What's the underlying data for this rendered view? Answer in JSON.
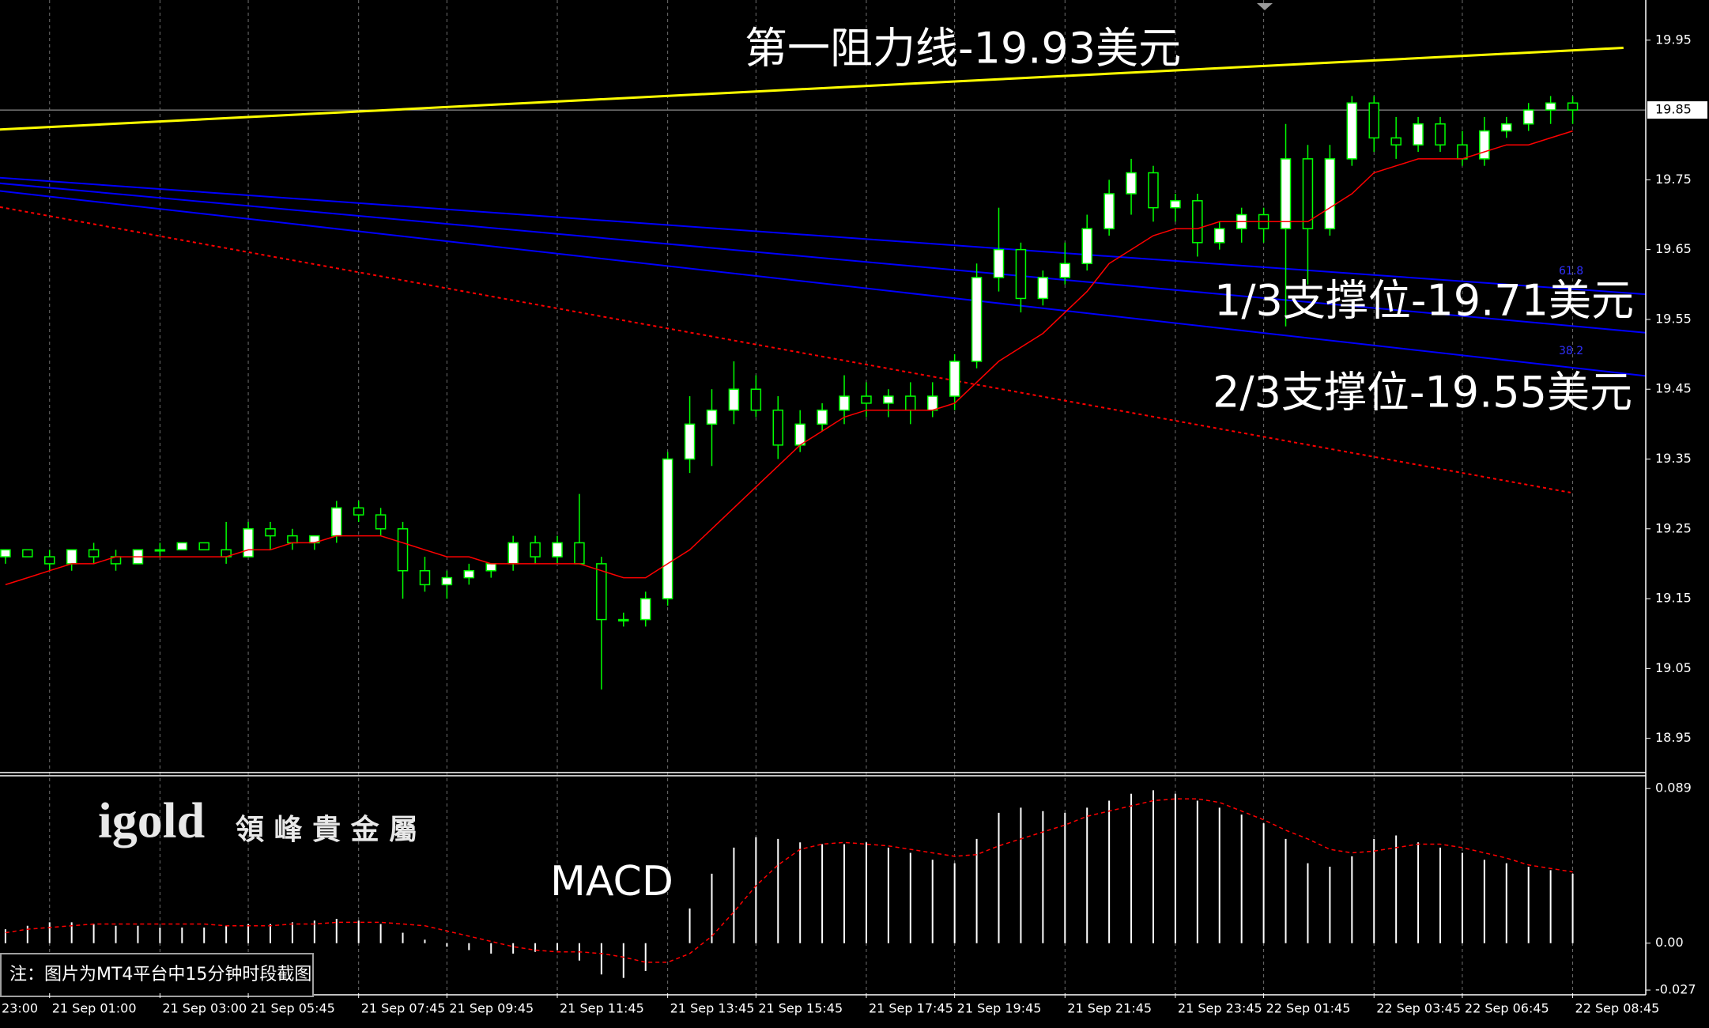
{
  "chart_data": {
    "type": "candlestick",
    "categories": [
      null,
      null,
      "21 Sep 01:00",
      null,
      null,
      null,
      null,
      "21 Sep 03:00",
      null,
      null,
      null,
      "21 Sep 05:45",
      null,
      null,
      null,
      null,
      "21 Sep 07:45",
      null,
      null,
      null,
      "21 Sep 09:45",
      null,
      null,
      null,
      null,
      "21 Sep 11:45",
      null,
      null,
      null,
      null,
      "21 Sep 13:45",
      null,
      null,
      null,
      "21 Sep 15:45",
      null,
      null,
      null,
      null,
      "21 Sep 17:45",
      null,
      null,
      null,
      "21 Sep 19:45",
      null,
      null,
      null,
      null,
      "21 Sep 21:45",
      null,
      null,
      null,
      null,
      "21 Sep 23:45",
      null,
      null,
      null,
      "22 Sep 01:45",
      null,
      null,
      null,
      null,
      "22 Sep 03:45",
      null,
      null,
      null,
      "22 Sep 06:45",
      null,
      null,
      null,
      null,
      "22 Sep 08:45"
    ],
    "edge_x_label": "23:00",
    "open": [
      19.21,
      19.22,
      19.21,
      19.2,
      19.22,
      19.21,
      19.2,
      19.22,
      19.22,
      19.23,
      19.22,
      19.21,
      19.25,
      19.24,
      19.23,
      19.24,
      19.28,
      19.27,
      19.25,
      19.19,
      19.17,
      19.18,
      19.19,
      19.2,
      19.23,
      19.21,
      19.23,
      19.2,
      19.12,
      19.12,
      19.15,
      19.35,
      19.4,
      19.42,
      19.45,
      19.42,
      19.37,
      19.4,
      19.42,
      19.44,
      19.43,
      19.44,
      19.42,
      19.44,
      19.49,
      19.61,
      19.65,
      19.58,
      19.61,
      19.63,
      19.68,
      19.73,
      19.76,
      19.71,
      19.72,
      19.66,
      19.68,
      19.7,
      19.68,
      19.78,
      19.68,
      19.78,
      19.86,
      19.81,
      19.8,
      19.83,
      19.8,
      19.78,
      19.82,
      19.83,
      19.85,
      19.86
    ],
    "high": [
      19.22,
      19.22,
      19.22,
      19.22,
      19.23,
      19.22,
      19.22,
      19.23,
      19.23,
      19.23,
      19.26,
      19.26,
      19.26,
      19.25,
      19.24,
      19.29,
      19.29,
      19.28,
      19.26,
      19.21,
      19.19,
      19.2,
      19.2,
      19.24,
      19.24,
      19.24,
      19.3,
      19.21,
      19.13,
      19.16,
      19.36,
      19.44,
      19.45,
      19.49,
      19.47,
      19.44,
      19.42,
      19.43,
      19.47,
      19.46,
      19.45,
      19.46,
      19.46,
      19.5,
      19.63,
      19.71,
      19.66,
      19.62,
      19.66,
      19.7,
      19.75,
      19.78,
      19.77,
      19.73,
      19.73,
      19.69,
      19.71,
      19.71,
      19.83,
      19.8,
      19.8,
      19.87,
      19.87,
      19.84,
      19.84,
      19.84,
      19.82,
      19.84,
      19.84,
      19.86,
      19.87,
      19.87
    ],
    "low": [
      19.2,
      19.21,
      19.19,
      19.19,
      19.2,
      19.19,
      19.2,
      19.21,
      19.22,
      19.22,
      19.2,
      19.21,
      19.22,
      19.22,
      19.22,
      19.23,
      19.26,
      19.24,
      19.15,
      19.16,
      19.15,
      19.17,
      19.18,
      19.19,
      19.2,
      19.2,
      19.21,
      19.02,
      19.11,
      19.11,
      19.14,
      19.33,
      19.34,
      19.4,
      19.41,
      19.35,
      19.36,
      19.39,
      19.4,
      19.41,
      19.41,
      19.4,
      19.41,
      19.42,
      19.48,
      19.59,
      19.56,
      19.57,
      19.6,
      19.62,
      19.67,
      19.7,
      19.69,
      19.69,
      19.64,
      19.65,
      19.66,
      19.66,
      19.54,
      19.6,
      19.67,
      19.77,
      19.79,
      19.78,
      19.79,
      19.79,
      19.77,
      19.77,
      19.81,
      19.82,
      19.83,
      19.83
    ],
    "close": [
      19.22,
      19.21,
      19.2,
      19.22,
      19.21,
      19.2,
      19.22,
      19.22,
      19.23,
      19.22,
      19.21,
      19.25,
      19.24,
      19.23,
      19.24,
      19.28,
      19.27,
      19.25,
      19.19,
      19.17,
      19.18,
      19.19,
      19.2,
      19.23,
      19.21,
      19.23,
      19.2,
      19.12,
      19.12,
      19.15,
      19.35,
      19.4,
      19.42,
      19.45,
      19.42,
      19.37,
      19.4,
      19.42,
      19.44,
      19.43,
      19.44,
      19.42,
      19.44,
      19.49,
      19.61,
      19.65,
      19.58,
      19.61,
      19.63,
      19.68,
      19.73,
      19.76,
      19.71,
      19.72,
      19.66,
      19.68,
      19.7,
      19.68,
      19.78,
      19.68,
      19.78,
      19.86,
      19.81,
      19.8,
      19.83,
      19.8,
      19.78,
      19.82,
      19.83,
      19.85,
      19.86,
      19.85
    ],
    "candle_colors": {
      "up": "#ffffff",
      "down": "#000000",
      "outline": "#00ff00"
    },
    "ma": {
      "color": "#ff0000",
      "values": [
        19.17,
        19.18,
        19.19,
        19.2,
        19.2,
        19.21,
        19.21,
        19.21,
        19.21,
        19.21,
        19.21,
        19.22,
        19.22,
        19.23,
        19.23,
        19.24,
        19.24,
        19.24,
        19.23,
        19.22,
        19.21,
        19.21,
        19.2,
        19.2,
        19.2,
        19.2,
        19.2,
        19.19,
        19.18,
        19.18,
        19.2,
        19.22,
        19.25,
        19.28,
        19.31,
        19.34,
        19.37,
        19.39,
        19.41,
        19.42,
        19.42,
        19.42,
        19.42,
        19.43,
        19.46,
        19.49,
        19.51,
        19.53,
        19.56,
        19.59,
        19.63,
        19.65,
        19.67,
        19.68,
        19.68,
        19.69,
        19.69,
        19.69,
        19.69,
        19.69,
        19.71,
        19.73,
        19.76,
        19.77,
        19.78,
        19.78,
        19.78,
        19.79,
        19.8,
        19.8,
        19.81,
        19.82
      ]
    },
    "ylim": [
      18.902,
      20.003
    ],
    "yticks": [
      19.95,
      19.75,
      19.65,
      19.55,
      19.45,
      19.35,
      19.25,
      19.15,
      19.05,
      18.95
    ],
    "last_price": 19.85,
    "grid": true,
    "trendlines": [
      {
        "color": "#ffff00",
        "dashed": false,
        "x": [
          -0.25,
          73.3
        ],
        "values": [
          19.822,
          19.939
        ]
      },
      {
        "color": "#0000ff",
        "dashed": false,
        "x": [
          -0.25,
          74.3
        ],
        "values": [
          19.753,
          19.586
        ]
      },
      {
        "color": "#0000ff",
        "dashed": false,
        "x": [
          -0.25,
          74.3
        ],
        "values": [
          19.745,
          19.531
        ]
      },
      {
        "color": "#0000ff",
        "dashed": false,
        "x": [
          -0.25,
          74.3
        ],
        "values": [
          19.734,
          19.469
        ]
      },
      {
        "color": "#ff0000",
        "dashed": true,
        "x": [
          -0.25,
          70.9
        ],
        "values": [
          19.711,
          19.302
        ]
      }
    ],
    "fib_labels": [
      "61.8",
      "38.2"
    ],
    "annotations": [
      "第一阻力线-19.93美元",
      "1/3支撑位-19.71美元",
      "2/3支撑位-19.55美元"
    ],
    "macd": {
      "title": "MACD",
      "ylim": [
        -0.0288,
        0.0959
      ],
      "yticks": [
        0.089,
        {
          "value": 0,
          "label": "0.00"
        },
        -0.027
      ],
      "histogram": {
        "color": "#ffffff",
        "values": [
          0.008,
          0.01,
          0.012,
          0.012,
          0.011,
          0.01,
          0.01,
          0.009,
          0.009,
          0.009,
          0.01,
          0.011,
          0.011,
          0.012,
          0.013,
          0.014,
          0.013,
          0.011,
          0.006,
          0.002,
          -0.002,
          -0.004,
          -0.006,
          -0.006,
          -0.005,
          -0.004,
          -0.01,
          -0.018,
          -0.02,
          -0.016,
          0.0,
          0.02,
          0.04,
          0.055,
          0.061,
          0.06,
          0.058,
          0.057,
          0.057,
          0.058,
          0.055,
          0.052,
          0.048,
          0.046,
          0.06,
          0.075,
          0.078,
          0.076,
          0.075,
          0.078,
          0.082,
          0.086,
          0.088,
          0.086,
          0.082,
          0.078,
          0.074,
          0.069,
          0.06,
          0.046,
          0.044,
          0.05,
          0.06,
          0.062,
          0.058,
          0.055,
          0.052,
          0.048,
          0.046,
          0.044,
          0.042,
          0.04
        ]
      },
      "signal": {
        "color": "#ff0000",
        "values": [
          0.006,
          0.008,
          0.009,
          0.01,
          0.011,
          0.011,
          0.011,
          0.011,
          0.011,
          0.011,
          0.01,
          0.01,
          0.01,
          0.011,
          0.011,
          0.012,
          0.012,
          0.012,
          0.011,
          0.01,
          0.007,
          0.004,
          0.001,
          -0.002,
          -0.004,
          -0.005,
          -0.005,
          -0.006,
          -0.008,
          -0.011,
          -0.011,
          -0.006,
          0.004,
          0.018,
          0.033,
          0.045,
          0.054,
          0.057,
          0.058,
          0.057,
          0.056,
          0.054,
          0.052,
          0.05,
          0.051,
          0.056,
          0.06,
          0.064,
          0.068,
          0.073,
          0.076,
          0.079,
          0.082,
          0.083,
          0.083,
          0.081,
          0.076,
          0.071,
          0.065,
          0.06,
          0.054,
          0.052,
          0.053,
          0.055,
          0.057,
          0.057,
          0.055,
          0.052,
          0.049,
          0.045,
          0.043,
          0.041
        ]
      }
    }
  },
  "logo": {
    "brand": "igold",
    "name": "領 峰 貴 金 屬"
  },
  "note": "注：图片为MT4平台中15分钟时段截图"
}
